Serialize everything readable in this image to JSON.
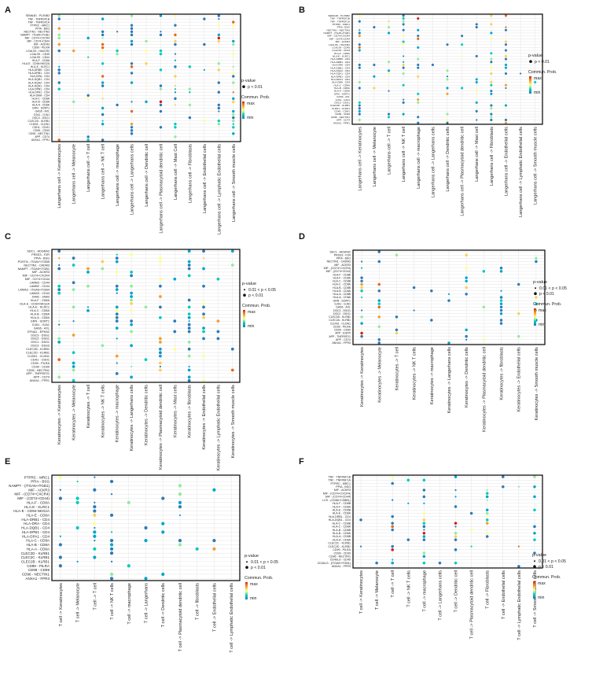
{
  "legend": {
    "pvalue_title": "p-value",
    "prob_title": "Commun. Prob.",
    "max_label": "max",
    "min_label": "min",
    "p_lt_001": "p < 0.01",
    "p_range": "0.01 < p < 0.05"
  },
  "colors": {
    "scale": [
      "#2c7bb6",
      "#00a6ca",
      "#00ccbc",
      "#90eb9d",
      "#ffff8c",
      "#f9d057",
      "#f29e2e",
      "#e76818",
      "#d7191c"
    ],
    "grid": "#e4e4e4",
    "frame": "#000000"
  },
  "chart_data": [
    {
      "panel": "A",
      "type": "scatter",
      "rows": [
        "SEMA4D - PLXNB2",
        "TNF - TNFRSF1B",
        "TNF - TNFRSF1A",
        "PTPRC - MRC1",
        "PPIA - BSG",
        "NECTIN1 - NECTIN3",
        "NAMPT - ITGA5+ITGB1",
        "MIF - CD74+CXCR4",
        "MIF - CD74+CD44",
        "MIF - ACKR3",
        "CD99 - PILRA",
        "LGALS9 - HAVCR2",
        "LGALS9 - CD45",
        "LGALS9 - CD44",
        "HLA-F - CD8A",
        "HLA-E - CD94:NKG2A",
        "HLA-E - KLRC1",
        "HLA-DRB5 - CD4",
        "HLA-DRB1 - CD4",
        "HLA-DRA - CD4",
        "HLA-DQB1 - CD4",
        "HLA-DQA2 - CD4",
        "HLA-DQA1 - CD4",
        "HLA-DPB1 - CD4",
        "HLA-DPA1 - CD4",
        "HLA-DMA - CD4",
        "HLA-C - CD8A",
        "HLA-B - CD8A",
        "HLA-A - CD8A",
        "GRN - SORT1",
        "GAS6 - AXL",
        "GJA1 - GJA1",
        "DSC3 - DSG1",
        "CLEC2D - KLRB1",
        "CLDN1 - CLDN1",
        "CDH1 - CDH1",
        "CD99 - CD99",
        "CD96 - NECTIN1",
        "APP - CD74",
        "ANXA1 - FPR1"
      ],
      "cols": [
        "Langerhans cell -> Keratinocytes",
        "Langerhans cell -> Melanocyte",
        "Langerhans cell -> T cell",
        "Langerhans cell -> NK T cell",
        "Langerhans cell -> macrophage",
        "Langerhans cell -> Langerhans cells",
        "Langerhans cell -> Dendritic cell",
        "Langerhans cell -> Plasmacytoid dendritic cell",
        "Langerhans cell -> Mast Cell",
        "Langerhans cell -> Fibroblasts",
        "Langerhans cell -> Endothelial cells",
        "Langerhans cell -> Lymphatic Endothelial cells",
        "Langerhans cell -> Smooth muscle cells"
      ],
      "legend_items": [
        "p_lt_001"
      ]
    },
    {
      "panel": "B",
      "type": "scatter",
      "rows": [
        "SEMA4D - PLXNB2",
        "TNF - TNFRSF1B",
        "TNF - TNFRSF1A",
        "PTPRC - MRC1",
        "PPIA - BSG",
        "NECTIN1 - NECTIN3",
        "NAMPT - ITGA5+ITGB1",
        "MIF - CD74+CXCR4",
        "MIF - CD74+CD44",
        "MIF - ACKR3",
        "LGALS9 - HAVCR2",
        "LGALS9 - CD45",
        "LGALS9 - CD44",
        "HLA-F - CD8A",
        "HLA-E - KLRC1",
        "HLA-DRB5 - CD4",
        "HLA-DRB1 - CD4",
        "HLA-DRA - CD4",
        "HLA-DQB1 - CD4",
        "HLA-DQA2 - CD4",
        "HLA-DQA1 - CD4",
        "HLA-DPB1 - CD4",
        "HLA-DPA1 - CD4",
        "HLA-DMA - CD4",
        "HLA-C - CD8A",
        "HLA-B - CD8A",
        "HLA-A - CD8A",
        "GRN - SORT1",
        "GAS6 - AXL",
        "GJA1 - GJA1",
        "DSC3 - DSG1",
        "CLEC2D - KLRB1",
        "CLDN1 - CLDN1",
        "CDH1 - CDH1",
        "CD99 - CD99",
        "CD96 - NECTIN1",
        "APP - CD74",
        "ANXA1 - FPR1"
      ],
      "cols": [
        "Langerhans cell -> Keratinocytes",
        "Langerhans cell -> Melanocyte",
        "Langerhans cell -> T cell",
        "Langerhans cell -> NK T cell",
        "Langerhans cell -> macrophage",
        "Langerhans cell -> Langerhans cells",
        "Langerhans cell -> Dendritic cells",
        "Langerhans cell -> Plasmacytoid dendritic cell",
        "Langerhans cell -> Mast cell",
        "Langerhans cell -> Fibroblasts",
        "Langerhans cell -> Endothelial cells",
        "Langerhans cell -> Lymphatic Endothelial cells",
        "Langerhans cell -> Smooth muscle cells"
      ],
      "legend_items": [
        "p_lt_001"
      ]
    },
    {
      "panel": "C",
      "type": "scatter",
      "rows": [
        "SDC1 - ADGRA2",
        "PRSS3 - F2R",
        "PPIA - BSG",
        "POSTN - ITGAV+ITGB5",
        "NECTIN1 - CADM3",
        "NAMPT - ITGA5+ITGB1",
        "MIF - ACKR3",
        "MIF - CD74+CXCR4",
        "MIF - CD74+CD44",
        "LAMB3 - CD44",
        "LAMB2 - CD44",
        "LAMA3 - ITGA6+ITGB4",
        "LAMA3 - CD44",
        "JAM2 - JAM3",
        "HLA-F - CD8A",
        "HLA-E - CD94:NKG2A",
        "HLA-E - KLRC1",
        "HLA-C - CD8A",
        "HLA-B - CD8A",
        "HLA-A - CD8A",
        "GRN - SORT1",
        "GJA1 - GJA1",
        "GAS6 - AXL",
        "EFNA1 - EPHA2",
        "DSC3 - DSG1",
        "DSC2 - DSG1",
        "DSC1 - DSG1",
        "DSC3 - DSG3",
        "CLEC2B - KLRB1",
        "CLEC2D - KLRB1",
        "CLDN1 - CLDN1",
        "CDH1 - CDH1",
        "CD99 - PILRA",
        "CD99 - CD99",
        "CD96 - NECTIN1",
        "APP - TNFRSF21",
        "APP - CD74",
        "ANXA1 - FPR1"
      ],
      "cols": [
        "Keratinocytes -> Keratinocytes",
        "Keratinocytes -> Melanocyte",
        "Keratinocytes -> T cell",
        "Keratinocytes -> NK T cells",
        "Keratinocytes -> macrophage",
        "Keratinocytes -> Langerhans cells",
        "Keratinocytes -> Dendritic cells",
        "Keratinocytes -> Plasmacytoid dendritic cell",
        "Keratinocytes -> Mast cells",
        "Keratinocytes -> fibroblasts",
        "Keratinocytes -> Endothelial cells",
        "Keratinocytes -> Lymphatic Endothelial cells",
        "Keratinocytes -> Smooth muscle cells"
      ],
      "legend_items": [
        "p_range",
        "p_lt_001"
      ]
    },
    {
      "panel": "D",
      "type": "scatter",
      "rows": [
        "SDC1 - ADGRA2",
        "PRSS3 - F2R",
        "PPIA - BSG",
        "NECTIN1 - CADM3",
        "MIF - ACKR3",
        "MIF - (CD74+CXCR4)",
        "MIF - (CD74+CD44)",
        "HLA-F - CD8B",
        "HLA-F - CD8A",
        "HLA-C - CD8B",
        "HLA-C - CD8A",
        "HLA-B - CD8B",
        "HLA-B - CD8A",
        "HLA-A - CD8B",
        "HLA-A - CD8A",
        "GRN - SORT1",
        "GJA1 - GJA1",
        "GAS6 - AXL",
        "DSC3 - DSG1",
        "DSC2 - DSG1",
        "CLEC2B - KLRB1",
        "CLEC2A - KLRB1",
        "CLDN1 - CLDN1",
        "CD99 - PILRA",
        "CD99 - CD99",
        "APP - EGFR",
        "APP - TNFRSF21",
        "APP - CD74",
        "ANXA1 - FPR3"
      ],
      "cols": [
        "Keratinocytes -> Keratinocytes",
        "Keratinocytes -> Melanocyte",
        "Keratinocytes -> T cell",
        "Keratinocytes -> NK T cells",
        "Keratinocytes -> macrophage",
        "Keratinocytes -> Langerhans cells",
        "Keratinocytes -> Dendritic cells",
        "Keratinocytes -> Plasmacytoid dendritic cell",
        "Keratinocytes -> fibroblasts",
        "Keratinocytes -> Endothelial cells",
        "Keratinocytes -> Smooth muscle cells"
      ],
      "legend_items": [
        "p_range",
        "p_lt_001"
      ]
    },
    {
      "panel": "E",
      "type": "scatter",
      "rows": [
        "PTPRC - MRC1",
        "PPIA - BSG",
        "NAMPT - (ITGA5+ITGB1)",
        "MIF - ACKR3",
        "MIF - (CD74+CXCR4)",
        "MIF - (CD74+CD44)",
        "HLA-F - CD8A",
        "HLA-E - KLRC1",
        "HLA-E - CD94:NKG2A",
        "HLA-E - CD8A",
        "HLA-DRB1 - CD4",
        "HLA-DRA - CD4",
        "HLA-DQB1 - CD4",
        "HLA-DPB1 - CD4",
        "HLA-DPA1 - CD4",
        "HLA-C - CD8A",
        "HLA-B - CD8A",
        "HLA-A - CD8A",
        "CLEC2D - KLRB1",
        "CLEC2C - KLRB1",
        "CLEC2B - KLRB1",
        "CD99 - PILRA",
        "CD99 - CD99",
        "CD96 - NECTIN1",
        "ANXA1 - FPR3"
      ],
      "cols": [
        "T cell -> Keratinocytes",
        "T cell -> Melanocyte",
        "T cell -> T cell",
        "T cell -> NK T cells",
        "T cell -> macrophage",
        "T cell -> Langerhans",
        "T cell -> Dendritic cells",
        "T cell -> Plasmacytoid dendritic cell",
        "T cell -> fibroblasts",
        "T cell -> Endothelial cells",
        "T cell -> Lymphatic Endothelial cells"
      ],
      "legend_items": [
        "p_range",
        "p_lt_001"
      ]
    },
    {
      "panel": "F",
      "type": "scatter",
      "rows": [
        "TNF - TNFRSF1B",
        "TNF - TNFRSF1A",
        "PTPRC - MRC1",
        "PPIA - BSG",
        "MIF - ACKR3",
        "MIF - (CD74+CXCR4)",
        "MIF - (CD74+CD44)",
        "LCK - (CD8A+CD8B1)",
        "HLA-F - CD8B",
        "HLA-F - CD8A",
        "HLA-E - CD8B",
        "HLA-E - CD8A",
        "HLA-DRB1 - CD4",
        "HLA-DQB1 - CD4",
        "HLA-C - CD8B",
        "HLA-C - CD8A",
        "HLA-B - CD8B",
        "HLA-B - CD8A",
        "HLA-A - CD8B",
        "HLA-A - CD8A",
        "CLEC2C - KLRB1",
        "CLEC2D - KLRB1",
        "CD99 - PILRA",
        "CD99 - CD99",
        "CD96 - NECTIN1",
        "CD40LG - CD40",
        "CD40LG - (ITGA5+ITGB1)",
        "ANXA1 - FPR3"
      ],
      "cols": [
        "T cell -> Keratinocytes",
        "T cell -> Melanocyte",
        "T cell -> T cell",
        "T cell -> NK T cells",
        "T cell -> macrophage",
        "T cell -> Langerhans cells",
        "T cell -> Dendritic cell",
        "T cell -> Plasmacytoid dendritic cell",
        "T cell -> Fibroblasts",
        "T cell -> Endothelial cells",
        "T cell -> Lymphatic Endothelial cells",
        "T cell -> Smooth muscle cells"
      ],
      "legend_items": [
        "p_range",
        "p_lt_001"
      ]
    }
  ]
}
